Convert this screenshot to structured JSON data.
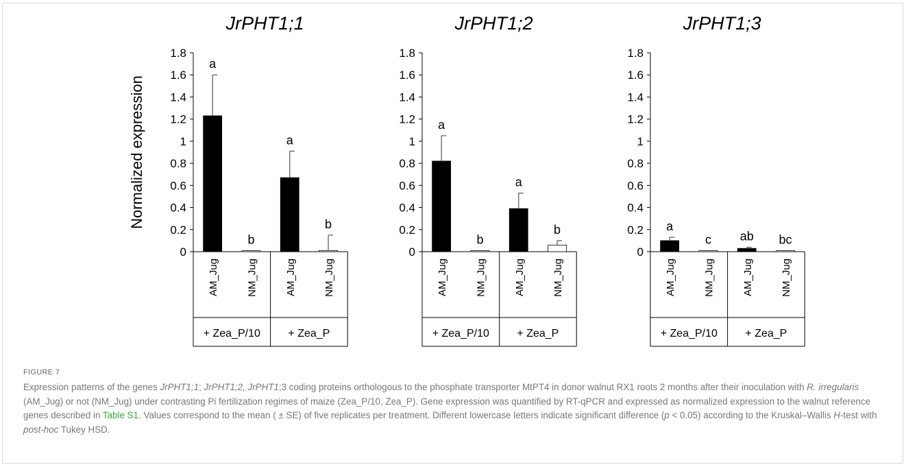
{
  "figure": {
    "ylabel": "Normalized expression",
    "yticks": [
      "0",
      "0.2",
      "0.4",
      "0.6",
      "0.8",
      "1",
      "1.2",
      "1.4",
      "1.6",
      "1.8"
    ],
    "categories": [
      "AM_Jug",
      "NM_Jug",
      "AM_Jug",
      "NM_Jug"
    ],
    "groups": [
      "+ Zea_P/10",
      "+ Zea_P"
    ],
    "colors": {
      "AM_Jug": "#000000",
      "NM_Jug": "#ffffff",
      "axis": "#000000"
    }
  },
  "chart_data": [
    {
      "type": "bar",
      "title": "JrPHT1;1",
      "ylabel": "Normalized expression",
      "ylim": [
        0,
        1.8
      ],
      "categories": [
        "AM_Jug",
        "NM_Jug",
        "AM_Jug",
        "NM_Jug"
      ],
      "groups": [
        "+ Zea_P/10",
        "+ Zea_P"
      ],
      "values": [
        1.23,
        0.0,
        0.67,
        0.01
      ],
      "errors": [
        0.37,
        0.0,
        0.24,
        0.14
      ],
      "letters": [
        "a",
        "b",
        "a",
        "b"
      ]
    },
    {
      "type": "bar",
      "title": "JrPHT1;2",
      "ylabel": "",
      "ylim": [
        0,
        1.8
      ],
      "categories": [
        "AM_Jug",
        "NM_Jug",
        "AM_Jug",
        "NM_Jug"
      ],
      "groups": [
        "+ Zea_P/10",
        "+ Zea_P"
      ],
      "values": [
        0.82,
        0.01,
        0.39,
        0.06
      ],
      "errors": [
        0.23,
        0.0,
        0.14,
        0.04
      ],
      "letters": [
        "a",
        "b",
        "a",
        "b"
      ]
    },
    {
      "type": "bar",
      "title": "JrPHT1;3",
      "ylabel": "",
      "ylim": [
        0,
        1.8
      ],
      "categories": [
        "AM_Jug",
        "NM_Jug",
        "AM_Jug",
        "NM_Jug"
      ],
      "groups": [
        "+ Zea_P/10",
        "+ Zea_P"
      ],
      "values": [
        0.1,
        0.0,
        0.03,
        0.0
      ],
      "errors": [
        0.03,
        0.0,
        0.01,
        0.0
      ],
      "letters": [
        "a",
        "c",
        "ab",
        "bc"
      ]
    }
  ],
  "caption": {
    "label": "FIGURE 7",
    "parts": [
      {
        "t": "Expression patterns of the genes "
      },
      {
        "t": "JrPHT1;1",
        "i": true
      },
      {
        "t": "; "
      },
      {
        "t": "JrPHT1;2, JrPHT1",
        "i": true
      },
      {
        "t": ";3 coding proteins orthologous to the phosphate transporter MtPT4 in donor walnut RX1 roots 2 months after their inoculation with "
      },
      {
        "t": "R. irregularis",
        "i": true
      },
      {
        "t": " (AM_Jug) or not (NM_Jug) under contrasting Pi fertilization regimes of maize (Zea_P/10, Zea_P). Gene expression was quantified by RT-qPCR and expressed as normalized expression to the walnut reference genes described in "
      },
      {
        "t": "Table S1",
        "link": true
      },
      {
        "t": ". Values correspond to the mean ( ± SE) of five replicates per treatment. Different lowercase letters indicate significant difference ("
      },
      {
        "t": "p",
        "i": true
      },
      {
        "t": " < 0.05) according to the Kruskal–Wallis "
      },
      {
        "t": "H",
        "i": true
      },
      {
        "t": "-test with "
      },
      {
        "t": "post-hoc",
        "i": true
      },
      {
        "t": " Tukey HSD."
      }
    ]
  }
}
